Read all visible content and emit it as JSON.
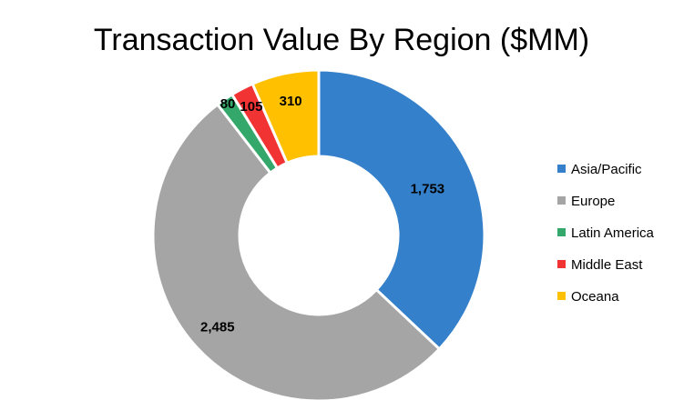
{
  "chart_data": {
    "type": "pie",
    "title": "Transaction Value By Region ($MM)",
    "categories": [
      "Asia/Pacific",
      "Europe",
      "Latin America",
      "Middle East",
      "Oceana"
    ],
    "values": [
      1753,
      2485,
      80,
      105,
      310
    ],
    "value_labels": [
      "1,753",
      "2,485",
      "80",
      "105",
      "310"
    ],
    "colors": [
      "#3580CB",
      "#A5A5A5",
      "#34A86B",
      "#F23333",
      "#FFC000"
    ],
    "legend_position": "right",
    "style": "donut"
  }
}
